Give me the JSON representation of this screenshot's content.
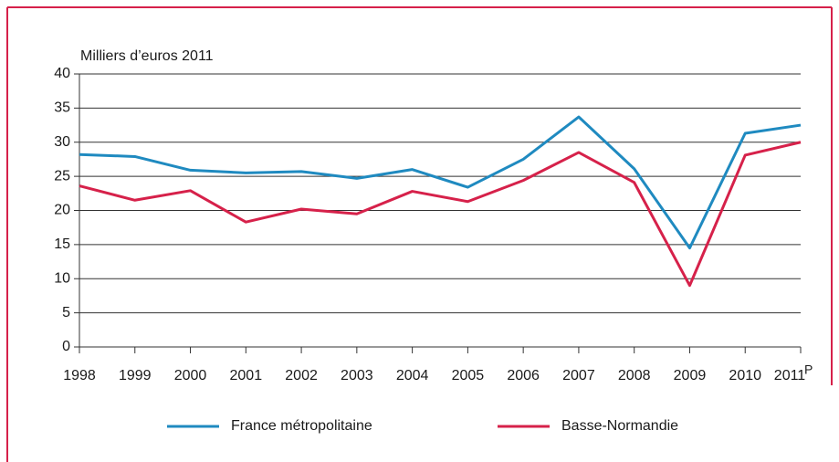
{
  "chart_data": {
    "type": "line",
    "ylabel": "Milliers d’euros 2011",
    "categories": [
      "1998",
      "1999",
      "2000",
      "2001",
      "2002",
      "2003",
      "2004",
      "2005",
      "2006",
      "2007",
      "2008",
      "2009",
      "2010",
      "2011"
    ],
    "last_category_note": "P",
    "series": [
      {
        "name": "France métropolitaine",
        "color": "#1f8ac0",
        "values": [
          28.2,
          27.9,
          25.9,
          25.5,
          25.7,
          24.7,
          26.0,
          23.4,
          27.5,
          33.7,
          26.1,
          14.5,
          31.3,
          32.5
        ]
      },
      {
        "name": "Basse-Normandie",
        "color": "#d6214a",
        "values": [
          23.6,
          21.5,
          22.9,
          18.3,
          20.2,
          19.5,
          22.8,
          21.3,
          24.4,
          28.5,
          24.1,
          9.0,
          28.1,
          30.0
        ]
      }
    ],
    "ylim": [
      0,
      40
    ],
    "yticks": [
      0,
      5,
      10,
      15,
      20,
      25,
      30,
      35,
      40
    ],
    "grid": true
  }
}
